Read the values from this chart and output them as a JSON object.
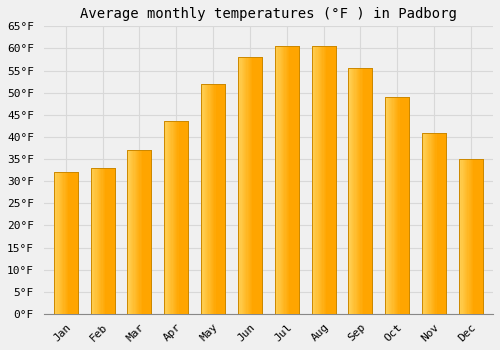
{
  "title": "Average monthly temperatures (°F ) in Padborg",
  "months": [
    "Jan",
    "Feb",
    "Mar",
    "Apr",
    "May",
    "Jun",
    "Jul",
    "Aug",
    "Sep",
    "Oct",
    "Nov",
    "Dec"
  ],
  "values": [
    32,
    33,
    37,
    43.5,
    52,
    58,
    60.5,
    60.5,
    55.5,
    49,
    41,
    35
  ],
  "bar_color_left": "#FFD055",
  "bar_color_right": "#FFA500",
  "bar_edge_color": "#CC8800",
  "ylim": [
    0,
    65
  ],
  "yticks": [
    0,
    5,
    10,
    15,
    20,
    25,
    30,
    35,
    40,
    45,
    50,
    55,
    60,
    65
  ],
  "background_color": "#f0f0f0",
  "grid_color": "#d8d8d8",
  "title_fontsize": 10,
  "tick_fontsize": 8,
  "font_family": "monospace"
}
